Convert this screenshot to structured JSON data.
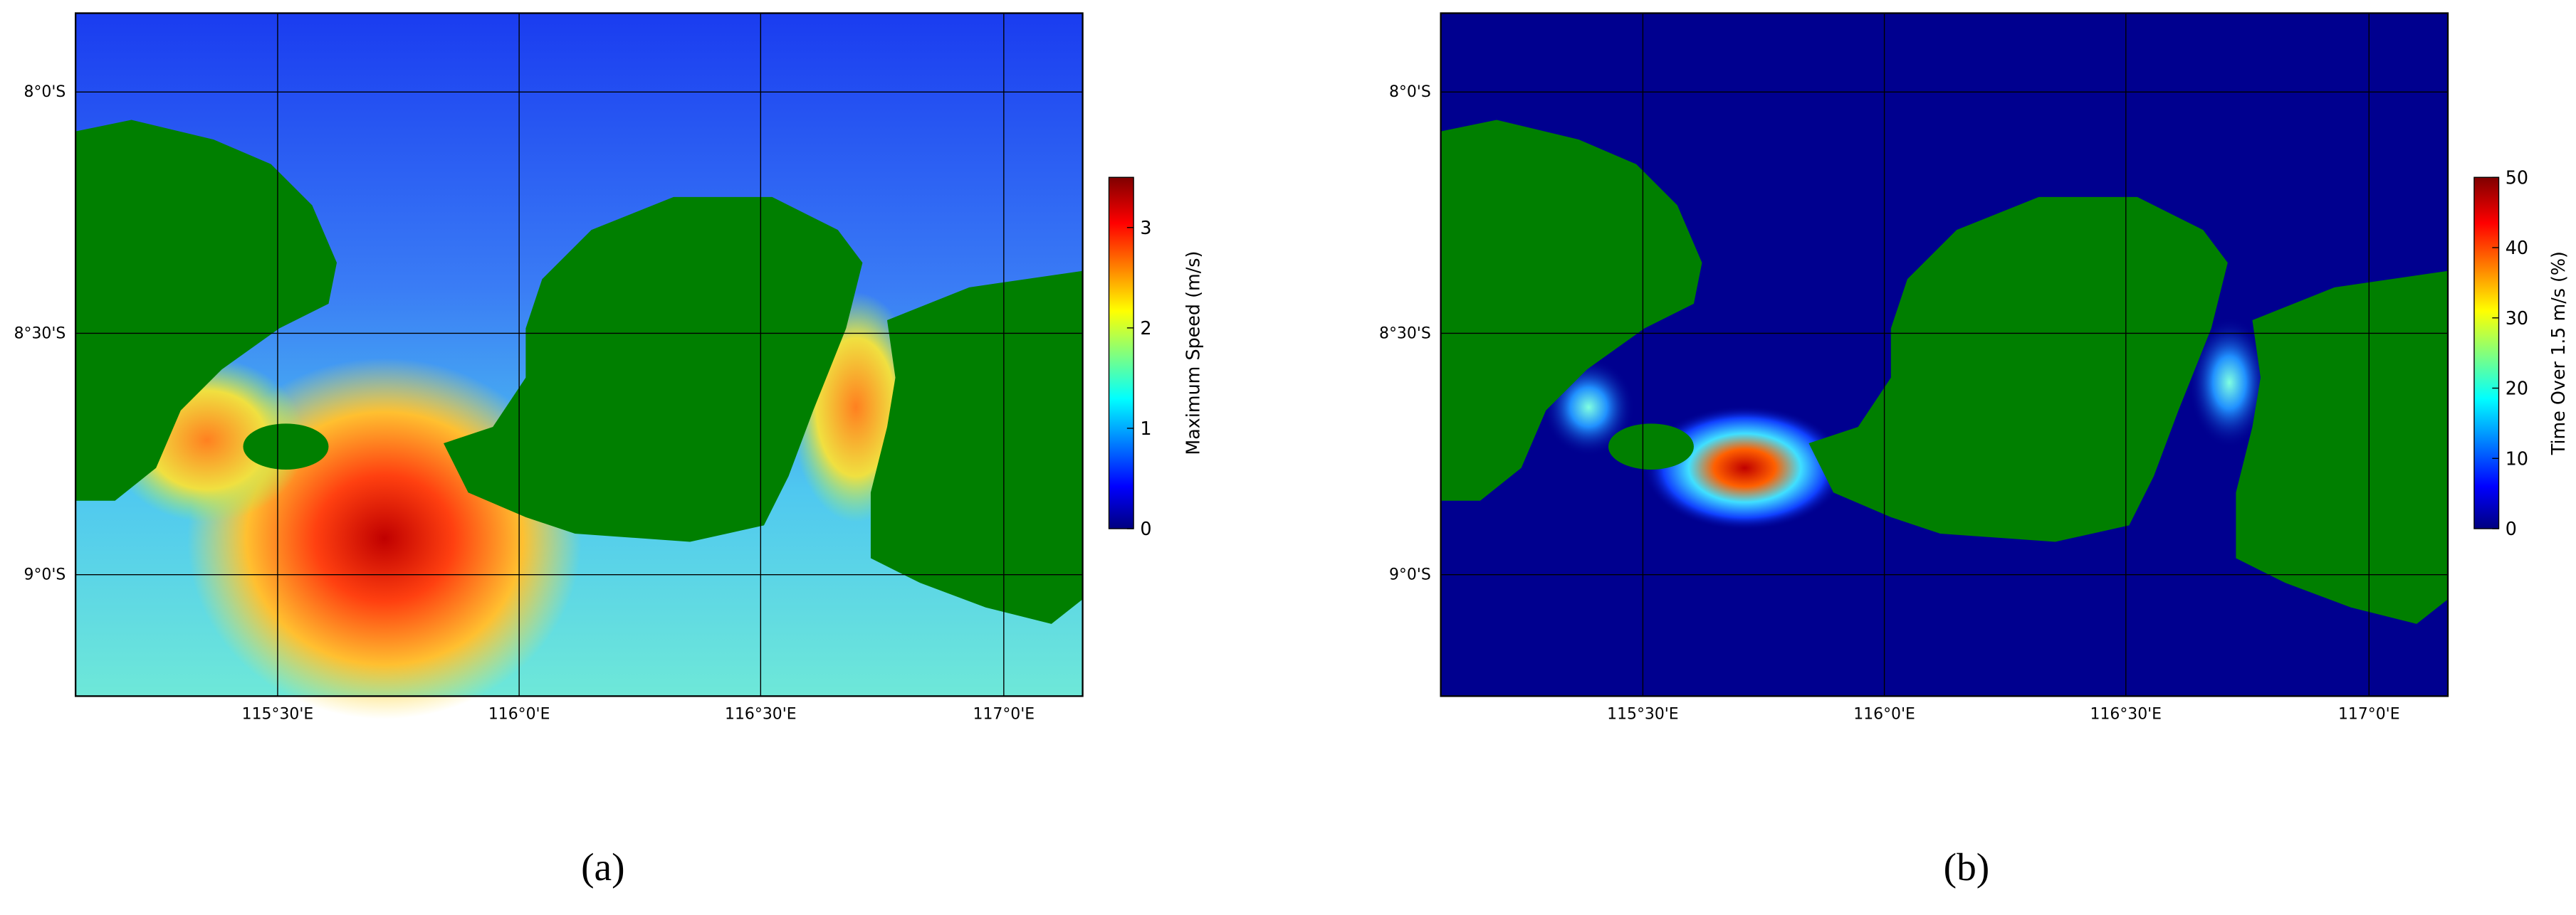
{
  "panels": [
    {
      "label": "(a)",
      "lat_ticks": [
        "8°0'S",
        "8°30'S",
        "9°0'S"
      ],
      "lon_ticks": [
        "115°30'E",
        "116°0'E",
        "116°30'E",
        "117°0'E"
      ],
      "colorbar": {
        "label": "Maximum Speed (m/s)",
        "ticks": [
          0,
          1,
          2,
          3
        ],
        "range": [
          0,
          3.5
        ]
      }
    },
    {
      "label": "(b)",
      "lat_ticks": [
        "8°0'S",
        "8°30'S",
        "9°0'S"
      ],
      "lon_ticks": [
        "115°30'E",
        "116°0'E",
        "116°30'E",
        "117°0'E"
      ],
      "colorbar": {
        "label": "Time Over 1.5 m/s (%)",
        "ticks": [
          0,
          10,
          20,
          30,
          40,
          50
        ],
        "range": [
          0,
          50
        ]
      }
    }
  ]
}
